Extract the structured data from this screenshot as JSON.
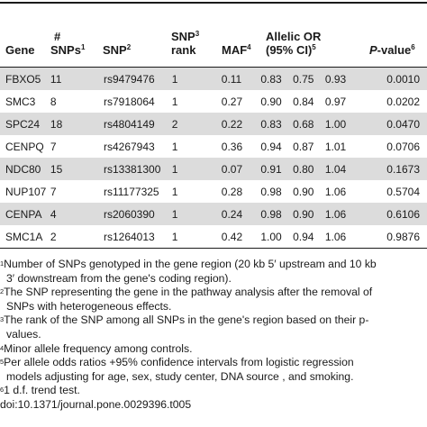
{
  "table": {
    "headers": {
      "gene": "Gene",
      "snps_hash": "#",
      "snps": "SNPs",
      "snps_sup": "1",
      "snp": "SNP",
      "snp_sup": "2",
      "rank_line1": "SNP",
      "rank_line1_sup": "3",
      "rank_line2": "rank",
      "maf": "MAF",
      "maf_sup": "4",
      "or_line1": "Allelic OR",
      "or_line2": "(95% CI)",
      "or_sup": "5",
      "p": "P",
      "p_suffix": "-value",
      "p_sup": "6"
    },
    "rows": [
      {
        "gene": "FBXO5",
        "n": "11",
        "snp": "rs9479476",
        "rank": "1",
        "maf": "0.11",
        "or": "0.83",
        "lo": "0.75",
        "hi": "0.93",
        "p": "0.0010"
      },
      {
        "gene": "SMC3",
        "n": "8",
        "snp": "rs7918064",
        "rank": "1",
        "maf": "0.27",
        "or": "0.90",
        "lo": "0.84",
        "hi": "0.97",
        "p": "0.0202"
      },
      {
        "gene": "SPC24",
        "n": "18",
        "snp": "rs4804149",
        "rank": "2",
        "maf": "0.22",
        "or": "0.83",
        "lo": "0.68",
        "hi": "1.00",
        "p": "0.0470"
      },
      {
        "gene": "CENPQ",
        "n": "7",
        "snp": "rs4267943",
        "rank": "1",
        "maf": "0.36",
        "or": "0.94",
        "lo": "0.87",
        "hi": "1.01",
        "p": "0.0706"
      },
      {
        "gene": "NDC80",
        "n": "15",
        "snp": "rs13381300",
        "rank": "1",
        "maf": "0.07",
        "or": "0.91",
        "lo": "0.80",
        "hi": "1.04",
        "p": "0.1673"
      },
      {
        "gene": "NUP107",
        "n": "7",
        "snp": "rs11177325",
        "rank": "1",
        "maf": "0.28",
        "or": "0.98",
        "lo": "0.90",
        "hi": "1.06",
        "p": "0.5704"
      },
      {
        "gene": "CENPA",
        "n": "4",
        "snp": "rs2060390",
        "rank": "1",
        "maf": "0.24",
        "or": "0.98",
        "lo": "0.90",
        "hi": "1.06",
        "p": "0.6106"
      },
      {
        "gene": "SMC1A",
        "n": "2",
        "snp": "rs1264013",
        "rank": "1",
        "maf": "0.42",
        "or": "1.00",
        "lo": "0.94",
        "hi": "1.06",
        "p": "0.9876"
      }
    ]
  },
  "footnotes": [
    {
      "mark": "1",
      "line1": "Number of SNPs genotyped in the gene region (20 kb 5′ upstream and 10 kb",
      "line2": "3′ downstream from the gene's coding region)."
    },
    {
      "mark": "2",
      "line1": "The SNP representing the gene in the pathway analysis after the removal of",
      "line2": "SNPs with heterogeneous effects."
    },
    {
      "mark": "3",
      "line1": "The rank of the SNP among all SNPs in the gene's region based on their p-",
      "line2": "values."
    },
    {
      "mark": "4",
      "line1": "Minor allele frequency among controls.",
      "line2": ""
    },
    {
      "mark": "5",
      "line1": "Per allele odds ratios +95% confidence intervals from logistic regression",
      "line2": "models adjusting for age, sex, study center, DNA source , and smoking."
    },
    {
      "mark": "6",
      "line1": "1 d.f. trend test.",
      "line2": ""
    }
  ],
  "doi": "doi:10.1371/journal.pone.0029396.t005"
}
